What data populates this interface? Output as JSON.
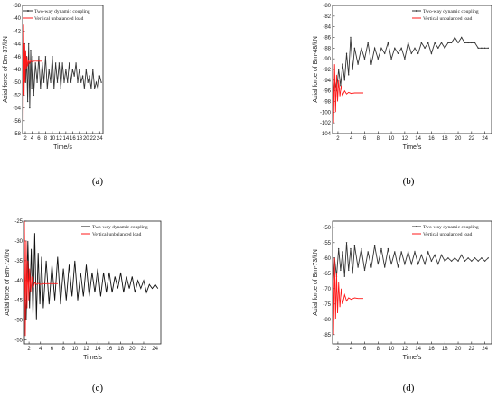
{
  "chart_data": [
    {
      "panel_label": "(a)",
      "type": "line",
      "xlabel": "Time/s",
      "ylabel": "Axial force of Bm-37/kN",
      "xlim": [
        1.2,
        25
      ],
      "ylim": [
        -58,
        -38
      ],
      "xticks": [
        2,
        4,
        6,
        8,
        10,
        12,
        14,
        16,
        18,
        20,
        22,
        24
      ],
      "yticks": [
        -58,
        -56,
        -54,
        -52,
        -50,
        -48,
        -46,
        -44,
        -42,
        -40,
        -38
      ],
      "legend": "top-right",
      "series": [
        {
          "name": "Two-way dynamic coupling",
          "color": "#333333",
          "marker": true,
          "x": [
            1.2,
            1.5,
            1.8,
            2.1,
            2.4,
            2.7,
            3.0,
            3.3,
            3.6,
            3.9,
            4.2,
            4.5,
            5,
            5.5,
            6,
            6.5,
            7,
            7.5,
            8,
            8.5,
            9,
            9.5,
            10,
            10.5,
            11,
            11.5,
            12,
            12.5,
            13,
            13.5,
            14,
            14.5,
            15,
            15.5,
            16,
            16.5,
            17,
            17.5,
            18,
            18.5,
            19,
            19.5,
            20,
            20.5,
            21,
            21.5,
            22,
            22.5,
            23,
            23.5,
            24,
            24.5
          ],
          "y": [
            -47,
            -52,
            -44,
            -50,
            -46,
            -53,
            -44,
            -54,
            -45,
            -51,
            -46,
            -52,
            -47,
            -50,
            -46,
            -51,
            -47,
            -50,
            -46,
            -51,
            -48,
            -50,
            -46,
            -51,
            -47,
            -50,
            -47,
            -51,
            -47,
            -50,
            -48,
            -50,
            -47,
            -50,
            -48,
            -49,
            -47,
            -50,
            -48,
            -50,
            -49,
            -51,
            -48,
            -50,
            -49,
            -51,
            -48,
            -51,
            -50,
            -51,
            -49,
            -50
          ]
        },
        {
          "name": "Vertical unbalanced load",
          "color": "#ff1a1a",
          "marker": false,
          "x": [
            1.2,
            1.35,
            1.5,
            1.65,
            1.8,
            1.95,
            2.1,
            2.3,
            2.5,
            2.7,
            3.0,
            3.3,
            3.6,
            4,
            4.5,
            5,
            6,
            7
          ],
          "y": [
            -38,
            -56,
            -41,
            -52,
            -44,
            -50,
            -45,
            -48,
            -46,
            -47.5,
            -46.5,
            -47,
            -46.6,
            -46.8,
            -46.7,
            -46.7,
            -46.7,
            -46.7
          ]
        }
      ]
    },
    {
      "panel_label": "(b)",
      "type": "line",
      "xlabel": "Time/s",
      "ylabel": "Axial force of Bm-48/kN",
      "xlim": [
        1.2,
        25
      ],
      "ylim": [
        -104,
        -80
      ],
      "xticks": [
        2,
        4,
        6,
        8,
        10,
        12,
        14,
        16,
        18,
        20,
        22,
        24
      ],
      "yticks": [
        -104,
        -102,
        -100,
        -98,
        -96,
        -94,
        -92,
        -90,
        -88,
        -86,
        -84,
        -82,
        -80
      ],
      "legend": "top-right",
      "series": [
        {
          "name": "Two-way dynamic coupling",
          "color": "#333333",
          "marker": true,
          "x": [
            1.2,
            1.5,
            1.8,
            2.1,
            2.4,
            2.7,
            3.0,
            3.3,
            3.6,
            3.9,
            4.2,
            4.5,
            5,
            5.5,
            6,
            6.5,
            7,
            7.5,
            8,
            8.5,
            9,
            9.5,
            10,
            10.5,
            11,
            11.5,
            12,
            12.5,
            13,
            13.5,
            14,
            14.5,
            15,
            15.5,
            16,
            16.5,
            17,
            17.5,
            18,
            18.5,
            19,
            19.5,
            20,
            20.5,
            21,
            21.5,
            22,
            22.5,
            23,
            23.5,
            24,
            24.5
          ],
          "y": [
            -98,
            -94,
            -96,
            -92,
            -95,
            -91,
            -94,
            -89,
            -93,
            -86,
            -92,
            -88,
            -91,
            -88,
            -90,
            -87,
            -91,
            -88,
            -90,
            -88,
            -89,
            -87,
            -90,
            -88,
            -89,
            -88,
            -90,
            -87,
            -89,
            -88,
            -89,
            -87,
            -88,
            -87,
            -89,
            -87,
            -88,
            -87,
            -88,
            -87,
            -87,
            -86,
            -87,
            -86,
            -87,
            -87,
            -87,
            -87,
            -88,
            -88,
            -88,
            -88
          ]
        },
        {
          "name": "Vertical unbalanced load",
          "color": "#ff1a1a",
          "marker": false,
          "x": [
            1.2,
            1.35,
            1.5,
            1.65,
            1.8,
            1.95,
            2.1,
            2.3,
            2.5,
            2.7,
            3.0,
            3.3,
            3.6,
            4,
            4.5,
            5,
            5.8
          ],
          "y": [
            -86,
            -102,
            -91,
            -100,
            -93,
            -98,
            -94,
            -97,
            -95,
            -96.8,
            -96,
            -96.6,
            -96.3,
            -96.5,
            -96.4,
            -96.4,
            -96.4
          ]
        }
      ]
    },
    {
      "panel_label": "(c)",
      "type": "line",
      "xlabel": "Time/s",
      "ylabel": "Axial force of Bm-72/kN",
      "xlim": [
        1.2,
        25
      ],
      "ylim": [
        -56,
        -25
      ],
      "xticks": [
        2,
        4,
        6,
        8,
        10,
        12,
        14,
        16,
        18,
        20,
        22,
        24
      ],
      "yticks": [
        -55,
        -50,
        -45,
        -40,
        -35,
        -30,
        -25
      ],
      "legend": "top-right",
      "series": [
        {
          "name": "Two-way dynamic coupling",
          "color": "#111111",
          "marker": false,
          "x": [
            1.2,
            1.5,
            1.8,
            2.1,
            2.4,
            2.7,
            3.0,
            3.3,
            3.6,
            3.9,
            4.2,
            4.5,
            5,
            5.5,
            6,
            6.5,
            7,
            7.5,
            8,
            8.5,
            9,
            9.5,
            10,
            10.5,
            11,
            11.5,
            12,
            12.5,
            13,
            13.5,
            14,
            14.5,
            15,
            15.5,
            16,
            16.5,
            17,
            17.5,
            18,
            18.5,
            19,
            19.5,
            20,
            20.5,
            21,
            21.5,
            22,
            22.5,
            23,
            23.5,
            24,
            24.5
          ],
          "y": [
            -38,
            -50,
            -30,
            -47,
            -32,
            -49,
            -28,
            -50,
            -33,
            -46,
            -34,
            -47,
            -35,
            -46,
            -36,
            -45,
            -34,
            -46,
            -37,
            -45,
            -36,
            -44,
            -35,
            -45,
            -38,
            -44,
            -36,
            -44,
            -38,
            -43,
            -37,
            -44,
            -38,
            -43,
            -38,
            -43,
            -39,
            -42,
            -38,
            -43,
            -39,
            -42,
            -39,
            -43,
            -40,
            -42,
            -40,
            -43,
            -41,
            -42,
            -41,
            -42
          ]
        },
        {
          "name": "Vertical unbalanced load",
          "color": "#ff1a1a",
          "marker": false,
          "x": [
            1.2,
            1.35,
            1.5,
            1.65,
            1.8,
            1.95,
            2.1,
            2.3,
            2.5,
            2.7,
            3.0,
            3.3,
            3.6,
            4,
            4.5,
            5,
            6,
            7
          ],
          "y": [
            -25,
            -54,
            -30,
            -47,
            -35,
            -45,
            -37,
            -43,
            -39,
            -42,
            -40.5,
            -41,
            -40.7,
            -41,
            -40.8,
            -40.8,
            -40.8,
            -40.8
          ]
        }
      ]
    },
    {
      "panel_label": "(d)",
      "type": "line",
      "xlabel": "Time/s",
      "ylabel": "Axial force of Bm-73/kN",
      "xlim": [
        1.2,
        25
      ],
      "ylim": [
        -88,
        -48
      ],
      "xticks": [
        2,
        4,
        6,
        8,
        10,
        12,
        14,
        16,
        18,
        20,
        22,
        24
      ],
      "yticks": [
        -85,
        -80,
        -75,
        -70,
        -65,
        -60,
        -55,
        -50
      ],
      "legend": "top-right",
      "series": [
        {
          "name": "Two-way dynamic coupling",
          "color": "#333333",
          "marker": true,
          "x": [
            1.2,
            1.5,
            1.8,
            2.1,
            2.4,
            2.7,
            3.0,
            3.3,
            3.6,
            3.9,
            4.2,
            4.5,
            5,
            5.5,
            6,
            6.5,
            7,
            7.5,
            8,
            8.5,
            9,
            9.5,
            10,
            10.5,
            11,
            11.5,
            12,
            12.5,
            13,
            13.5,
            14,
            14.5,
            15,
            15.5,
            16,
            16.5,
            17,
            17.5,
            18,
            18.5,
            19,
            19.5,
            20,
            20.5,
            21,
            21.5,
            22,
            22.5,
            23,
            23.5,
            24,
            24.5
          ],
          "y": [
            -70,
            -60,
            -66,
            -57,
            -64,
            -58,
            -66,
            -55,
            -64,
            -57,
            -65,
            -56,
            -63,
            -57,
            -64,
            -58,
            -63,
            -56,
            -62,
            -57,
            -63,
            -57,
            -62,
            -58,
            -63,
            -58,
            -62,
            -58,
            -62,
            -58,
            -62,
            -59,
            -62,
            -58,
            -61,
            -59,
            -62,
            -59,
            -61,
            -60,
            -61,
            -60,
            -61,
            -59,
            -61,
            -60,
            -61,
            -60,
            -61,
            -60,
            -61,
            -60
          ]
        },
        {
          "name": "Vertical unbalanced load",
          "color": "#ff1a1a",
          "marker": false,
          "x": [
            1.2,
            1.35,
            1.5,
            1.65,
            1.8,
            1.95,
            2.1,
            2.3,
            2.5,
            2.7,
            3.0,
            3.3,
            3.6,
            4,
            4.5,
            5,
            5.8
          ],
          "y": [
            -48,
            -85,
            -60,
            -80,
            -65,
            -78,
            -68,
            -76,
            -70,
            -75,
            -72,
            -74,
            -73,
            -73.5,
            -73,
            -73.2,
            -73.2
          ]
        }
      ]
    }
  ]
}
